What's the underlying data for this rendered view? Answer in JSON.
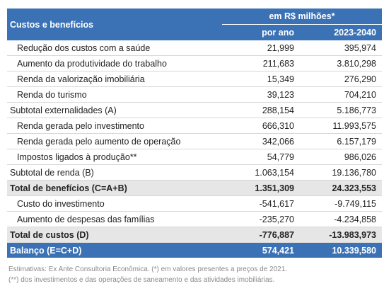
{
  "table": {
    "header": {
      "label": "Custos e benefícios",
      "unit": "em R$ milhões*",
      "columns": [
        "por ano",
        "2023-2040"
      ]
    },
    "rows": [
      [
        "Redução dos custos com a saúde",
        "21,999",
        "395,974"
      ],
      [
        "Aumento da produtividade do trabalho",
        "211,683",
        "3.810,298"
      ],
      [
        "Renda da valorização imobiliária",
        "15,349",
        "276,290"
      ],
      [
        "Renda do turismo",
        "39,123",
        "704,210"
      ],
      [
        "Subtotal externalidades (A)",
        "288,154",
        "5.186,773"
      ],
      [
        "Renda gerada pelo investimento",
        "666,310",
        "11.993,575"
      ],
      [
        "Renda gerada pelo aumento de operação",
        "342,066",
        "6.157,179"
      ],
      [
        "Impostos ligados à produção**",
        "54,779",
        "986,026"
      ],
      [
        "Subtotal de renda (B)",
        "1.063,154",
        "19.136,780"
      ],
      [
        "Total de benefícios (C=A+B)",
        "1.351,309",
        "24.323,553"
      ],
      [
        "Custo do investimento",
        "-541,617",
        "-9.749,115"
      ],
      [
        "Aumento de despesas das famílias",
        "-235,270",
        "-4.234,858"
      ],
      [
        "Total de custos (D)",
        "-776,887",
        "-13.983,973"
      ],
      [
        "Balanço (E=C+D)",
        "574,421",
        "10.339,580"
      ]
    ]
  },
  "notes": [
    "Estimativas: Ex Ante Consultoria Econômica. (*) em valores presentes a preços de 2021.",
    "(**) dos investimentos e das operações de saneamento e das atividades imobiliárias."
  ]
}
